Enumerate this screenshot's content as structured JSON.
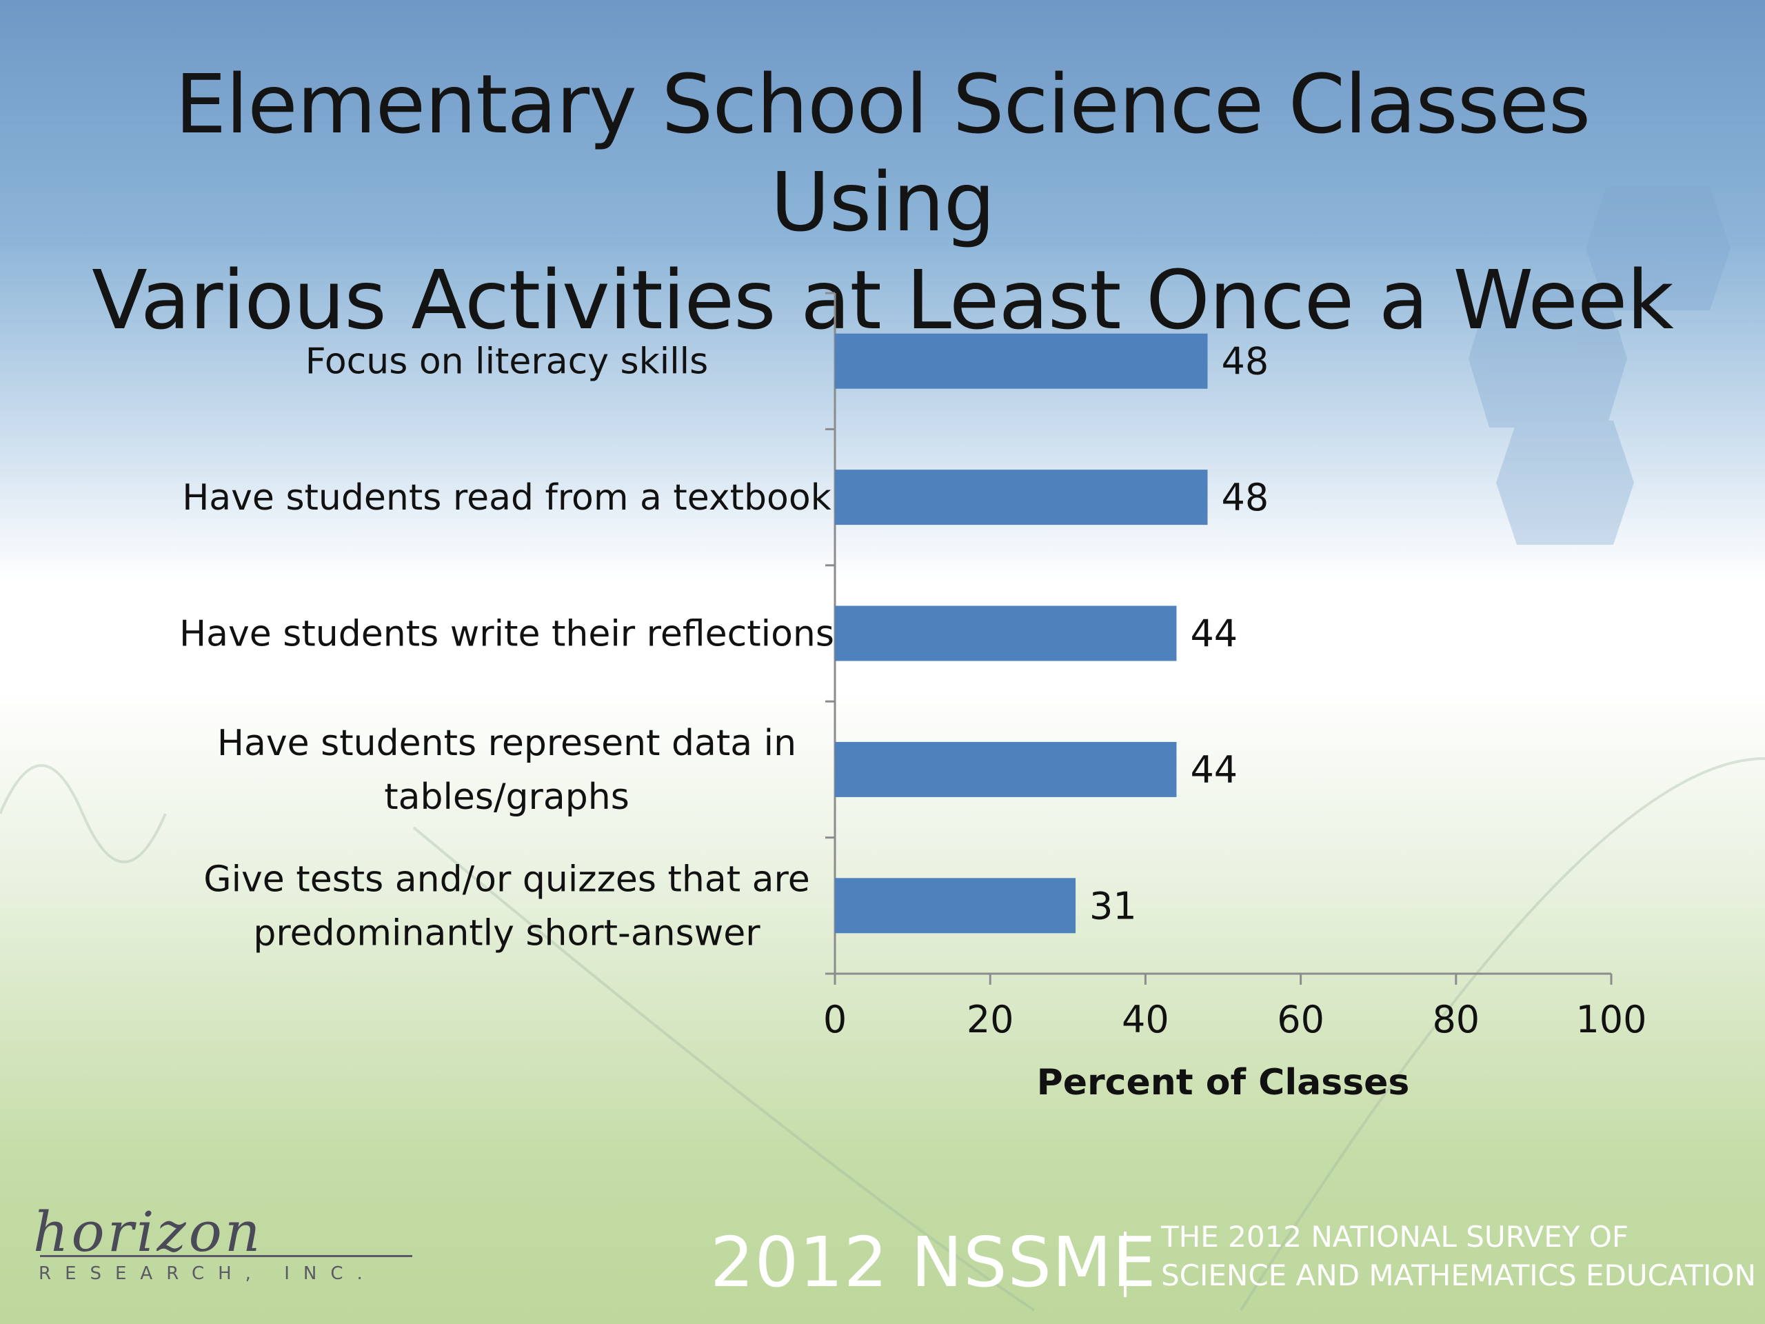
{
  "slide": {
    "title_lines": [
      "Elementary School Science Classes Using",
      "Various Activities at Least Once a Week"
    ],
    "footer": {
      "logo_script": "horizon",
      "logo_sub": "RESEARCH, INC.",
      "brand": "2012 NSSME",
      "subtitle_lines": [
        "THE 2012 NATIONAL SURVEY OF",
        "SCIENCE AND MATHEMATICS EDUCATION"
      ]
    },
    "colors": {
      "bar": "#4f81bd",
      "text": "#111111",
      "axis": "#8c8c8c"
    }
  },
  "chart_data": {
    "type": "bar",
    "orientation": "horizontal",
    "categories": [
      [
        "Focus on literacy skills"
      ],
      [
        "Have students read from a textbook"
      ],
      [
        "Have students write their reflections"
      ],
      [
        "Have students represent data in",
        "tables/graphs"
      ],
      [
        "Give tests and/or quizzes that are",
        "predominantly short-answer"
      ]
    ],
    "values": [
      48,
      48,
      44,
      44,
      31
    ],
    "data_labels": [
      "48",
      "48",
      "44",
      "44",
      "31"
    ],
    "xlabel": "Percent of Classes",
    "xlim": [
      0,
      100
    ],
    "xticks": [
      0,
      20,
      40,
      60,
      80,
      100
    ],
    "xtick_labels": [
      "0",
      "20",
      "40",
      "60",
      "80",
      "100"
    ],
    "grid": false,
    "legend": "none"
  }
}
